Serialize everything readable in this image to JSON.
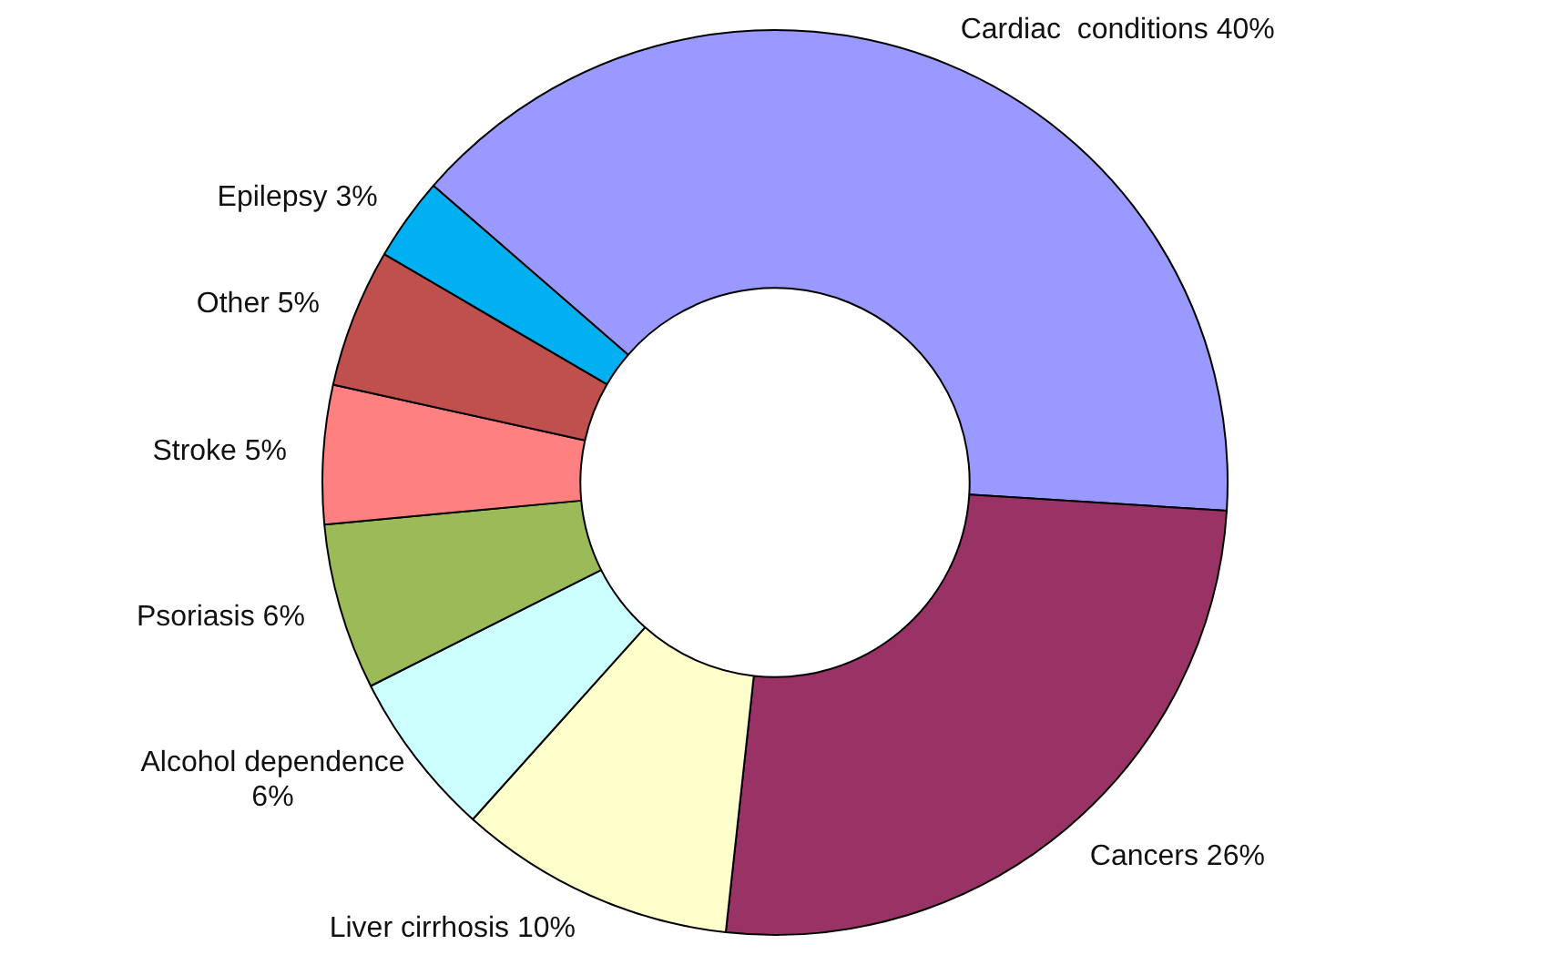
{
  "chart_data": {
    "type": "donut",
    "categories": [
      "Cardiac  conditions",
      "Cancers",
      "Liver cirrhosis",
      "Alcohol dependence",
      "Psoriasis",
      "Stroke",
      "Other",
      "Epilepsy"
    ],
    "values": [
      40,
      26,
      10,
      6,
      6,
      5,
      5,
      3
    ],
    "value_labels": [
      "40%",
      "26%",
      "10%",
      "6%",
      "6%",
      "5%",
      "5%",
      "3%"
    ],
    "colors": [
      "#9999ff",
      "#993366",
      "#ffffcc",
      "#ccffff",
      "#9bbb59",
      "#ff8080",
      "#c0504d",
      "#00b0f0"
    ],
    "legend": false
  }
}
